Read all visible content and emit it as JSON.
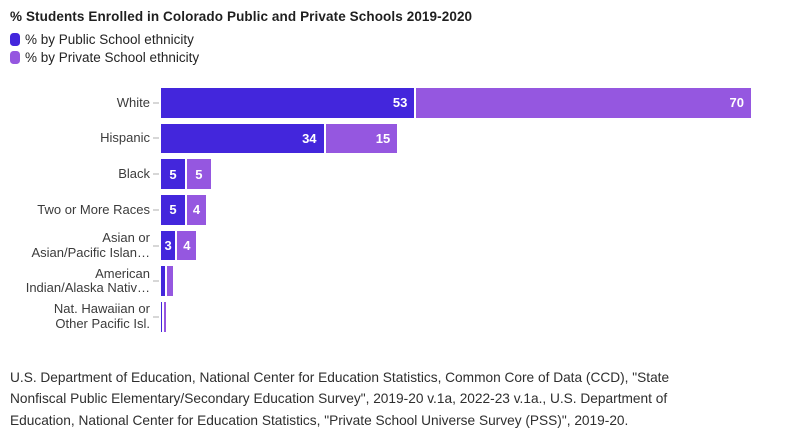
{
  "chart_data": {
    "type": "bar",
    "orientation": "horizontal",
    "stacked": true,
    "title": "% Students Enrolled in Colorado Public and Private Schools 2019-2020",
    "categories": [
      "White",
      "Hispanic",
      "Black",
      "Two or More Races",
      "Asian or\nAsian/Pacific Islan…",
      "American\nIndian/Alaska Nativ…",
      "Nat. Hawaiian or\nOther Pacific Isl."
    ],
    "series": [
      {
        "name": "% by Public School ethnicity",
        "color": "#4326DC",
        "values": [
          53,
          34,
          5,
          5,
          3,
          0.8,
          0.2
        ]
      },
      {
        "name": "% by Private School ethnicity",
        "color": "#9557E0",
        "values": [
          70,
          15,
          5,
          4,
          4,
          1.2,
          0.4
        ]
      }
    ],
    "unit": "%",
    "xlim": [
      0,
      123
    ],
    "grid": false,
    "legend_position": "top-left",
    "value_label_min": 3
  },
  "ui_colors": {
    "title_text": "#1f1f1f",
    "category_text": "#3b3b3b",
    "footer_text": "#2e2e2e",
    "axis_tick": "#d7d7d7",
    "value_text": "#ffffff",
    "background": "#ffffff"
  },
  "footer": {
    "lines": [
      "U.S. Department of Education, National Center for Education Statistics, Common Core of Data (CCD), \"State",
      "Nonfiscal Public Elementary/Secondary Education Survey\", 2019-20 v.1a, 2022-23 v.1a., U.S. Department of",
      "Education, National Center for Education Statistics, \"Private School Universe Survey (PSS)\", 2019-20."
    ]
  }
}
